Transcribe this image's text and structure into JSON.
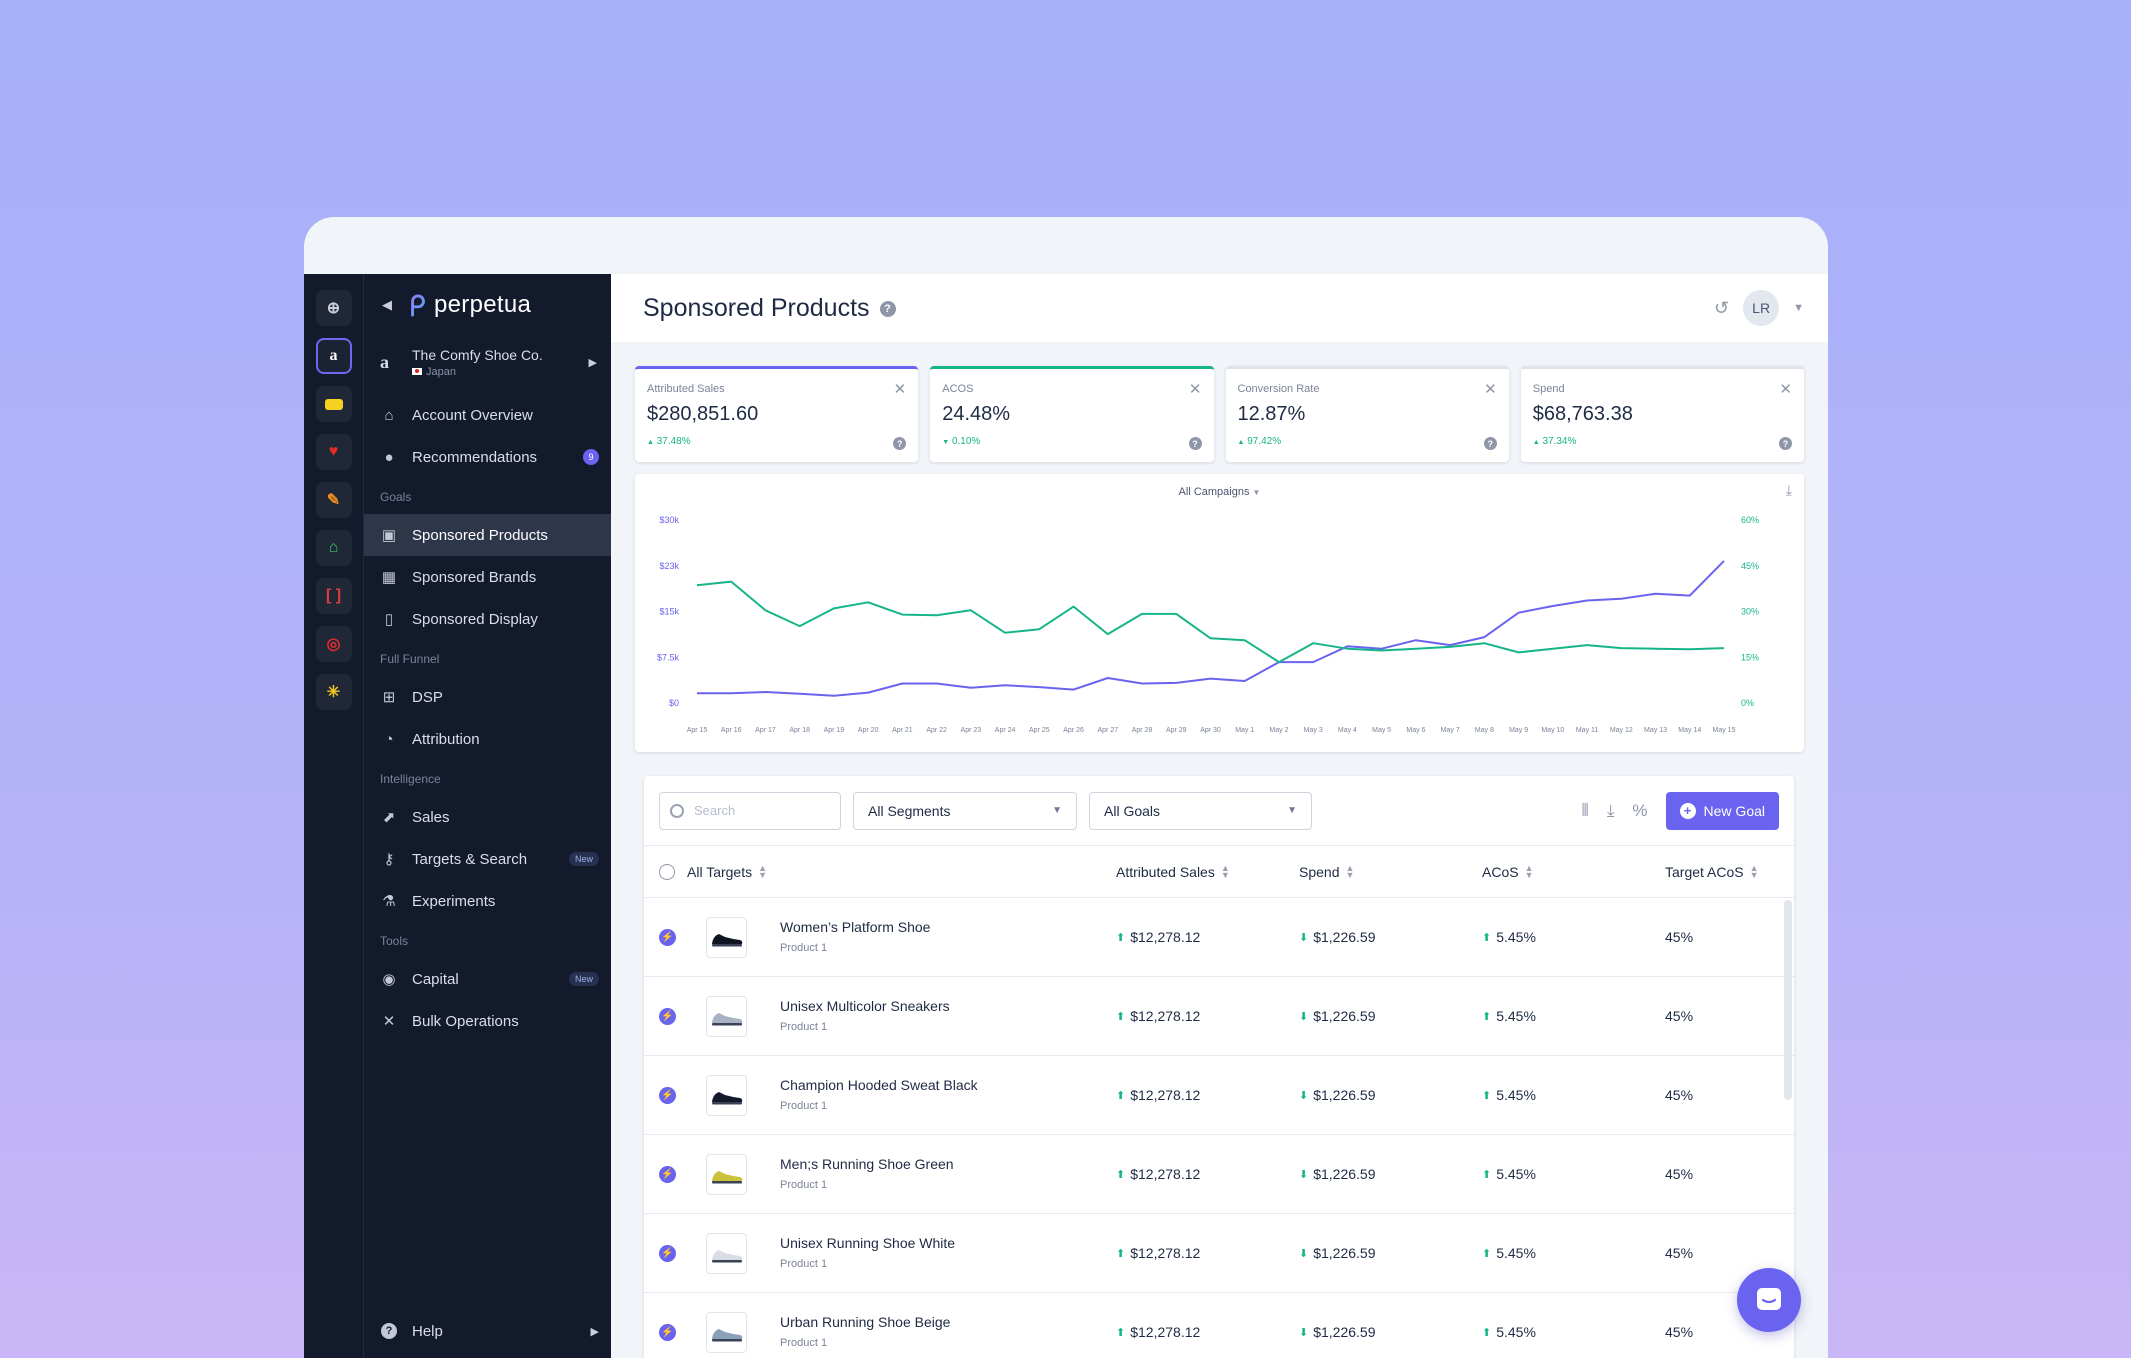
{
  "sidebar": {
    "brand": "perpetua",
    "account": {
      "name": "The Comfy Shoe Co.",
      "country": "Japan"
    },
    "items_top": [
      {
        "label": "Account Overview",
        "icon": "home-icon"
      },
      {
        "label": "Recommendations",
        "icon": "lightbulb-icon",
        "count": "9"
      }
    ],
    "goals_title": "Goals",
    "goals": [
      {
        "label": "Sponsored Products",
        "icon": "box-icon",
        "active": true
      },
      {
        "label": "Sponsored Brands",
        "icon": "layout-icon"
      },
      {
        "label": "Sponsored Display",
        "icon": "display-icon"
      }
    ],
    "funnel_title": "Full Funnel",
    "funnel": [
      {
        "label": "DSP",
        "icon": "grid-icon"
      },
      {
        "label": "Attribution",
        "icon": "pie-icon"
      }
    ],
    "intel_title": "Intelligence",
    "intel": [
      {
        "label": "Sales",
        "icon": "trend-icon"
      },
      {
        "label": "Targets & Search",
        "icon": "key-icon",
        "badge": "New"
      },
      {
        "label": "Experiments",
        "icon": "flask-icon"
      }
    ],
    "tools_title": "Tools",
    "tools": [
      {
        "label": "Capital",
        "icon": "coin-icon",
        "badge": "New"
      },
      {
        "label": "Bulk Operations",
        "icon": "tools-icon"
      }
    ],
    "help": "Help"
  },
  "header": {
    "title": "Sponsored Products",
    "avatar": "LR"
  },
  "kpis": [
    {
      "label": "Attributed Sales",
      "value": "$280,851.60",
      "delta": "37.48%",
      "dir": "up",
      "color": "#6a63ef"
    },
    {
      "label": "ACOS",
      "value": "24.48%",
      "delta": "0.10%",
      "dir": "down",
      "color": "#16b589"
    },
    {
      "label": "Conversion Rate",
      "value": "12.87%",
      "delta": "97.42%",
      "dir": "up",
      "color": "#dfe3ea"
    },
    {
      "label": "Spend",
      "value": "$68,763.38",
      "delta": "37.34%",
      "dir": "up",
      "color": "#dfe3ea"
    }
  ],
  "chart": {
    "campaign_filter": "All Campaigns"
  },
  "chart_data": {
    "type": "line",
    "x": [
      "Apr 15",
      "Apr 16",
      "Apr 17",
      "Apr 18",
      "Apr 19",
      "Apr 20",
      "Apr 21",
      "Apr 22",
      "Apr 23",
      "Apr 24",
      "Apr 25",
      "Apr 26",
      "Apr 27",
      "Apr 28",
      "Apr 29",
      "Apr 30",
      "May 1",
      "May 2",
      "May 3",
      "May 4",
      "May 5",
      "May 6",
      "May 7",
      "May 8",
      "May 9",
      "May 10",
      "May 11",
      "May 12",
      "May 13",
      "May 14",
      "May 15"
    ],
    "y_left_ticks": [
      "$30k",
      "$23k",
      "$15k",
      "$7.5k",
      "$0"
    ],
    "y_right_ticks": [
      "60%",
      "45%",
      "30%",
      "15%",
      "0%"
    ],
    "ylim_left": [
      0,
      30000
    ],
    "ylim_right": [
      0,
      60
    ],
    "series": [
      {
        "axis": "left",
        "color": "#6a63ef",
        "values": [
          1600,
          1600,
          1800,
          1500,
          1200,
          1700,
          3200,
          3200,
          2500,
          2900,
          2600,
          2200,
          4100,
          3200,
          3300,
          4000,
          3600,
          6700,
          6700,
          9300,
          8900,
          10300,
          9500,
          10800,
          14800,
          15900,
          16800,
          17100,
          17900,
          17600,
          23300
        ]
      },
      {
        "axis": "left",
        "color": "#16b589",
        "values": [
          19300,
          19900,
          15200,
          12600,
          15500,
          16500,
          14500,
          14400,
          15200,
          11500,
          12100,
          15800,
          11300,
          14600,
          14600,
          10600,
          10300,
          6700,
          9800,
          8900,
          8600,
          8900,
          9200,
          9800,
          8300,
          8900,
          9500,
          9000,
          8900,
          8800,
          9000
        ]
      }
    ]
  },
  "table": {
    "search_placeholder": "Search",
    "segments": "All Segments",
    "goals": "All Goals",
    "new_goal": "New Goal",
    "percent": "%",
    "columns": {
      "targets": "All Targets",
      "sales": "Attributed Sales",
      "spend": "Spend",
      "acos": "ACoS",
      "target_acos": "Target ACoS"
    },
    "rows": [
      {
        "name": "Women’s Platform Shoe",
        "sub": "Product 1",
        "sales": "$12,278.12",
        "spend": "$1,226.59",
        "acos": "5.45%",
        "target": "45%",
        "shoe": "#101522"
      },
      {
        "name": "Unisex Multicolor Sneakers",
        "sub": "Product 1",
        "sales": "$12,278.12",
        "spend": "$1,226.59",
        "acos": "5.45%",
        "target": "45%",
        "shoe": "#a8b2c4"
      },
      {
        "name": "Champion Hooded Sweat Black",
        "sub": "Product 1",
        "sales": "$12,278.12",
        "spend": "$1,226.59",
        "acos": "5.45%",
        "target": "45%",
        "shoe": "#141a2b"
      },
      {
        "name": "Men;s Running Shoe Green",
        "sub": "Product 1",
        "sales": "$12,278.12",
        "spend": "$1,226.59",
        "acos": "5.45%",
        "target": "45%",
        "shoe": "#c9c23a"
      },
      {
        "name": "Unisex Running Shoe White",
        "sub": "Product 1",
        "sales": "$12,278.12",
        "spend": "$1,226.59",
        "acos": "5.45%",
        "target": "45%",
        "shoe": "#d9dde5"
      },
      {
        "name": "Urban Running Shoe Beige",
        "sub": "Product 1",
        "sales": "$12,278.12",
        "spend": "$1,226.59",
        "acos": "5.45%",
        "target": "45%",
        "shoe": "#8aa0b8"
      }
    ]
  }
}
